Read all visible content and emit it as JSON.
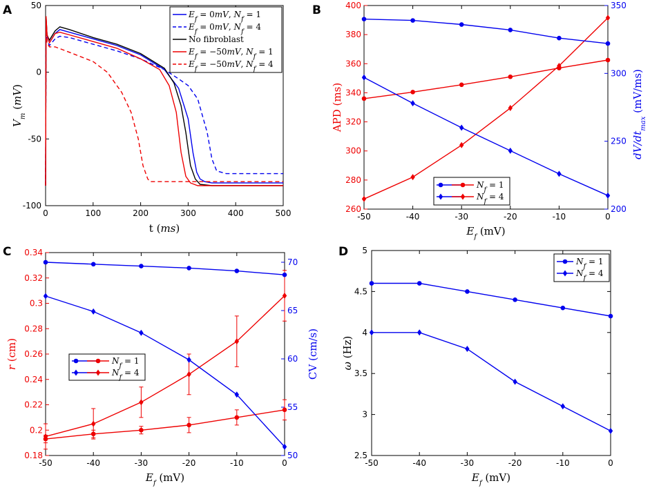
{
  "chart_data": [
    {
      "panel": "A",
      "type": "line",
      "xlabel": "t (ms)",
      "ylabel": "V_m (mV)",
      "xlim": [
        0,
        500
      ],
      "ylim": [
        -100,
        50
      ],
      "xticks": [
        0,
        100,
        200,
        300,
        400,
        500
      ],
      "yticks": [
        50,
        0,
        -50,
        -100
      ],
      "legend": {
        "placement": "top-right"
      },
      "series": [
        {
          "name": "E_f = 0mV, N_f = 1",
          "color": "#0000ee",
          "dash": "solid",
          "x": [
            0,
            1,
            3,
            8,
            20,
            30,
            50,
            100,
            150,
            200,
            250,
            280,
            300,
            310,
            318,
            325,
            335,
            350,
            400,
            500
          ],
          "y": [
            -85,
            40,
            28,
            22,
            29,
            32,
            30,
            25,
            20,
            13,
            2,
            -12,
            -35,
            -60,
            -75,
            -80,
            -82,
            -83,
            -83,
            -83
          ]
        },
        {
          "name": "E_f = 0mV, N_f = 4",
          "color": "#0000ee",
          "dash": "dashed",
          "x": [
            0,
            1,
            3,
            8,
            20,
            30,
            50,
            100,
            150,
            200,
            250,
            280,
            300,
            320,
            340,
            350,
            360,
            380,
            400,
            500
          ],
          "y": [
            -85,
            38,
            24,
            20,
            25,
            27,
            26,
            21,
            16,
            10,
            2,
            -5,
            -10,
            -20,
            -45,
            -65,
            -74,
            -76,
            -76,
            -76
          ]
        },
        {
          "name": "No fibroblast",
          "color": "#000000",
          "dash": "solid",
          "x": [
            0,
            1,
            3,
            8,
            20,
            30,
            50,
            100,
            150,
            200,
            250,
            270,
            285,
            295,
            305,
            315,
            325,
            350,
            400,
            500
          ],
          "y": [
            -85,
            42,
            28,
            24,
            31,
            34,
            32,
            26,
            21,
            14,
            3,
            -8,
            -25,
            -45,
            -70,
            -80,
            -84,
            -85,
            -85,
            -85
          ]
        },
        {
          "name": "E_f = -50mV, N_f = 1",
          "color": "#ee0000",
          "dash": "solid",
          "x": [
            0,
            1,
            3,
            8,
            20,
            30,
            50,
            100,
            150,
            200,
            240,
            260,
            275,
            285,
            295,
            305,
            320,
            350,
            400,
            500
          ],
          "y": [
            -85,
            42,
            28,
            22,
            29,
            30,
            28,
            23,
            18,
            10,
            2,
            -10,
            -30,
            -60,
            -78,
            -83,
            -85,
            -85,
            -85,
            -85
          ]
        },
        {
          "name": "E_f = -50mV, N_f = 4",
          "color": "#ee0000",
          "dash": "dashed",
          "x": [
            0,
            1,
            3,
            8,
            20,
            50,
            100,
            130,
            160,
            180,
            195,
            205,
            215,
            220,
            230,
            250,
            300,
            400,
            500
          ],
          "y": [
            -85,
            40,
            22,
            19,
            19,
            15,
            8,
            0,
            -15,
            -30,
            -50,
            -70,
            -80,
            -82,
            -82,
            -82,
            -82,
            -82,
            -82
          ]
        }
      ]
    },
    {
      "panel": "B",
      "type": "line",
      "xlabel": "E_f (mV)",
      "ylabel_left": "APD (ms)",
      "ylabel_right": "dV/dt max (mV/ms)",
      "x": [
        -50,
        -40,
        -30,
        -20,
        -10,
        0
      ],
      "xticks": [
        -50,
        -40,
        -30,
        -20,
        -10,
        0
      ],
      "ylim_left": [
        260,
        400
      ],
      "yticks_left": [
        260,
        280,
        300,
        320,
        340,
        360,
        380,
        400
      ],
      "ylim_right": [
        200,
        350
      ],
      "yticks_right": [
        200,
        250,
        300,
        350
      ],
      "legend": {
        "placement": "bottom-center",
        "entries": [
          "N_f = 1",
          "N_f = 4"
        ]
      },
      "series": [
        {
          "name": "APD N_f = 1",
          "axis": "left",
          "color": "#ee0000",
          "marker": "circle",
          "values": [
            336,
            340.5,
            345.5,
            351,
            357,
            362.5
          ]
        },
        {
          "name": "APD N_f = 4",
          "axis": "left",
          "color": "#ee0000",
          "marker": "diamond",
          "values": [
            267,
            282,
            304,
            329.5,
            358.5,
            391.5
          ]
        },
        {
          "name": "dV/dt N_f = 1",
          "axis": "right",
          "color": "#0000ee",
          "marker": "circle",
          "values": [
            340,
            339,
            336,
            332,
            326,
            322
          ]
        },
        {
          "name": "dV/dt N_f = 4",
          "axis": "right",
          "color": "#0000ee",
          "marker": "diamond",
          "values": [
            297,
            278,
            260,
            243,
            226,
            210
          ]
        }
      ]
    },
    {
      "panel": "C",
      "type": "line",
      "xlabel": "E_f (mV)",
      "ylabel_left": "r (cm)",
      "ylabel_right": "CV (cm/s)",
      "x": [
        -50,
        -40,
        -30,
        -20,
        -10,
        0
      ],
      "xticks": [
        -50,
        -40,
        -30,
        -20,
        -10,
        0
      ],
      "ylim_left": [
        0.18,
        0.34
      ],
      "yticks_left": [
        0.18,
        0.2,
        0.22,
        0.24,
        0.26,
        0.28,
        0.3,
        0.32,
        0.34
      ],
      "ylim_right": [
        50,
        71
      ],
      "yticks_right": [
        50,
        55,
        60,
        65,
        70
      ],
      "legend": {
        "placement": "center-left",
        "entries": [
          "N_f = 1",
          "N_f = 4"
        ]
      },
      "series": [
        {
          "name": "r N_f = 1",
          "axis": "left",
          "color": "#ee0000",
          "marker": "circle",
          "values": [
            0.193,
            0.197,
            0.2,
            0.204,
            0.21,
            0.216
          ],
          "errors": [
            0.003,
            0.003,
            0.003,
            0.006,
            0.006,
            0.008
          ]
        },
        {
          "name": "r N_f = 4",
          "axis": "left",
          "color": "#ee0000",
          "marker": "diamond",
          "values": [
            0.195,
            0.205,
            0.222,
            0.244,
            0.27,
            0.306
          ],
          "errors": [
            0.01,
            0.012,
            0.012,
            0.016,
            0.02,
            0.02
          ]
        },
        {
          "name": "CV N_f = 1",
          "axis": "right",
          "color": "#0000ee",
          "marker": "circle",
          "values": [
            70,
            69.8,
            69.6,
            69.4,
            69.1,
            68.7
          ]
        },
        {
          "name": "CV N_f = 4",
          "axis": "right",
          "color": "#0000ee",
          "marker": "diamond",
          "values": [
            66.5,
            64.9,
            62.7,
            59.9,
            56.3,
            50.9
          ]
        }
      ]
    },
    {
      "panel": "D",
      "type": "line",
      "xlabel": "E_f (mV)",
      "ylabel": "ω (Hz)",
      "x": [
        -50,
        -40,
        -30,
        -20,
        -10,
        0
      ],
      "xticks": [
        -50,
        -40,
        -30,
        -20,
        -10,
        0
      ],
      "ylim": [
        2.5,
        5
      ],
      "yticks": [
        2.5,
        3,
        3.5,
        4,
        4.5,
        5
      ],
      "legend": {
        "placement": "top-right",
        "entries": [
          "N_f = 1",
          "N_f = 4"
        ]
      },
      "series": [
        {
          "name": "N_f = 1",
          "color": "#0000ee",
          "marker": "circle",
          "values": [
            4.6,
            4.6,
            4.5,
            4.4,
            4.3,
            4.2
          ]
        },
        {
          "name": "N_f = 4",
          "color": "#0000ee",
          "marker": "diamond",
          "values": [
            4.0,
            4.0,
            3.8,
            3.4,
            3.1,
            2.8
          ]
        }
      ]
    }
  ],
  "labels": {
    "panelA": "A",
    "panelB": "B",
    "panelC": "C",
    "panelD": "D",
    "t": "t",
    "ms": "(ms)",
    "apd": "APD (ms)",
    "mvms": "(mV/ms)",
    "cvunit": "CV (cm/s)",
    "rcm": "(cm)",
    "mvunit": "(mV)",
    "hz": "(Hz)",
    "nofib": "No fibroblast"
  }
}
